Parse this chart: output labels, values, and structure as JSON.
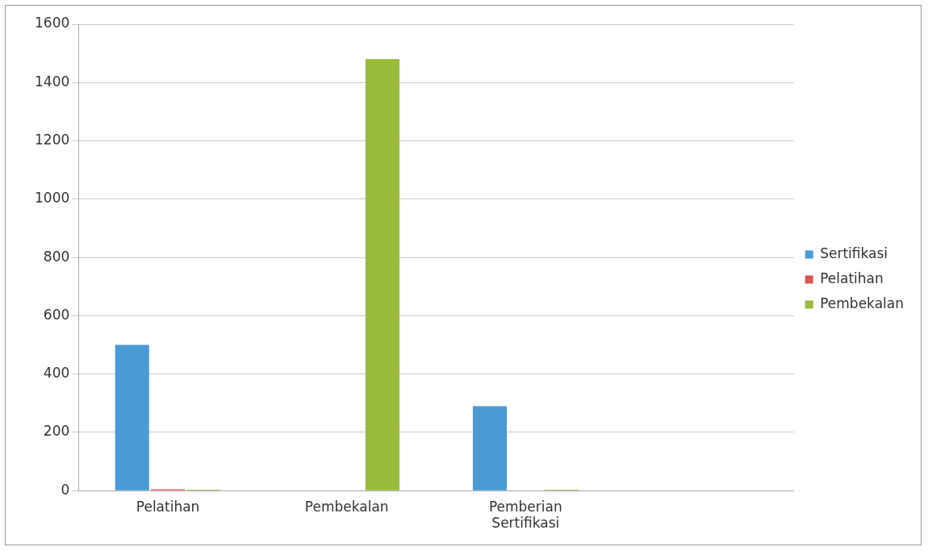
{
  "chart_data": {
    "type": "bar",
    "categories": [
      "Pelatihan",
      "Pembekalan",
      "Pemberian Sertifikasi",
      null
    ],
    "series": [
      {
        "name": "Sertifikasi",
        "color": "#4a9ad6",
        "values": [
          500,
          0,
          290,
          0
        ]
      },
      {
        "name": "Pelatihan",
        "color": "#d9534f",
        "values": [
          5,
          0,
          0,
          0
        ]
      },
      {
        "name": "Pembekalan",
        "color": "#9bbb3c",
        "values": [
          3,
          1480,
          3,
          0
        ]
      }
    ],
    "ylim": [
      0,
      1600
    ],
    "yticks": [
      0,
      200,
      400,
      600,
      800,
      1000,
      1200,
      1400,
      1600
    ],
    "grid": "y",
    "legend": "right"
  }
}
